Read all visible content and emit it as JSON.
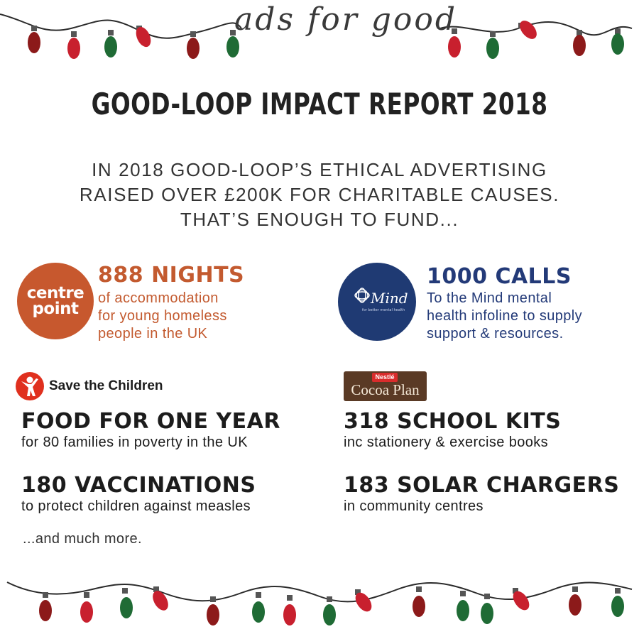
{
  "brand_script": "ads for good",
  "title": "GOOD-LOOP IMPACT REPORT 2018",
  "intro": {
    "line1": "IN 2018 GOOD-LOOP’S ETHICAL ADVERTISING",
    "line2": "RAISED OVER £200K FOR CHARITABLE CAUSES.",
    "line3": "THAT’S ENOUGH TO FUND..."
  },
  "centrepoint": {
    "logo_line1": "centre",
    "logo_line2": "point",
    "headline": "888 NIGHTS",
    "desc1": "of accommodation",
    "desc2": "for young homeless",
    "desc3": "people in the UK",
    "color": "#c35a2f"
  },
  "mind": {
    "logo_word": "Mind",
    "logo_tagline": "for better mental health",
    "headline": "1000 CALLS",
    "desc1": "To the Mind mental",
    "desc2": "health infoline to supply",
    "desc3": "support & resources.",
    "color": "#233a78"
  },
  "save_the_children": {
    "logo_name": "Save the Children",
    "stat1_head": "FOOD FOR ONE YEAR",
    "stat1_sub": "for 80 families in poverty in the UK",
    "stat2_head": "180 VACCINATIONS",
    "stat2_sub": "to protect children against measles"
  },
  "cocoa_plan": {
    "logo_brand": "Nestlé",
    "logo_name": "Cocoa Plan",
    "stat1_head": "318 SCHOOL KITS",
    "stat1_sub": "inc stationery & exercise books",
    "stat2_head": "183 SOLAR CHARGERS",
    "stat2_sub": "in community centres"
  },
  "footer_note": "...and much more.",
  "colors": {
    "bulb_red": "#c8202e",
    "bulb_dark_red": "#8c1a1a",
    "bulb_green": "#1f6b35"
  }
}
